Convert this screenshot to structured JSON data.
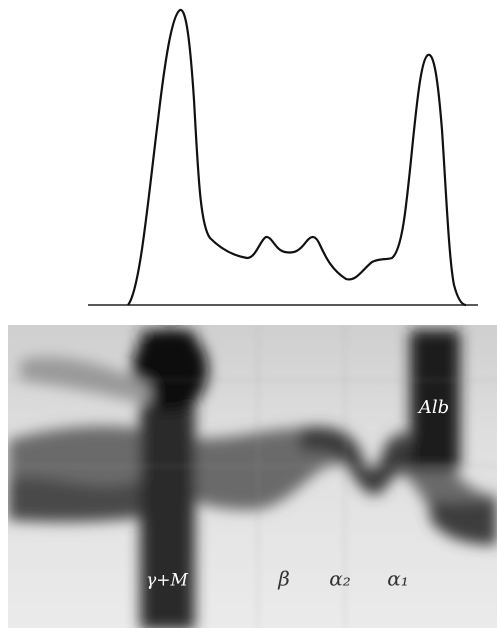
{
  "photo": {
    "labels": [
      "γ+M",
      "β",
      "α₂",
      "α₁",
      "Alb"
    ]
  }
}
